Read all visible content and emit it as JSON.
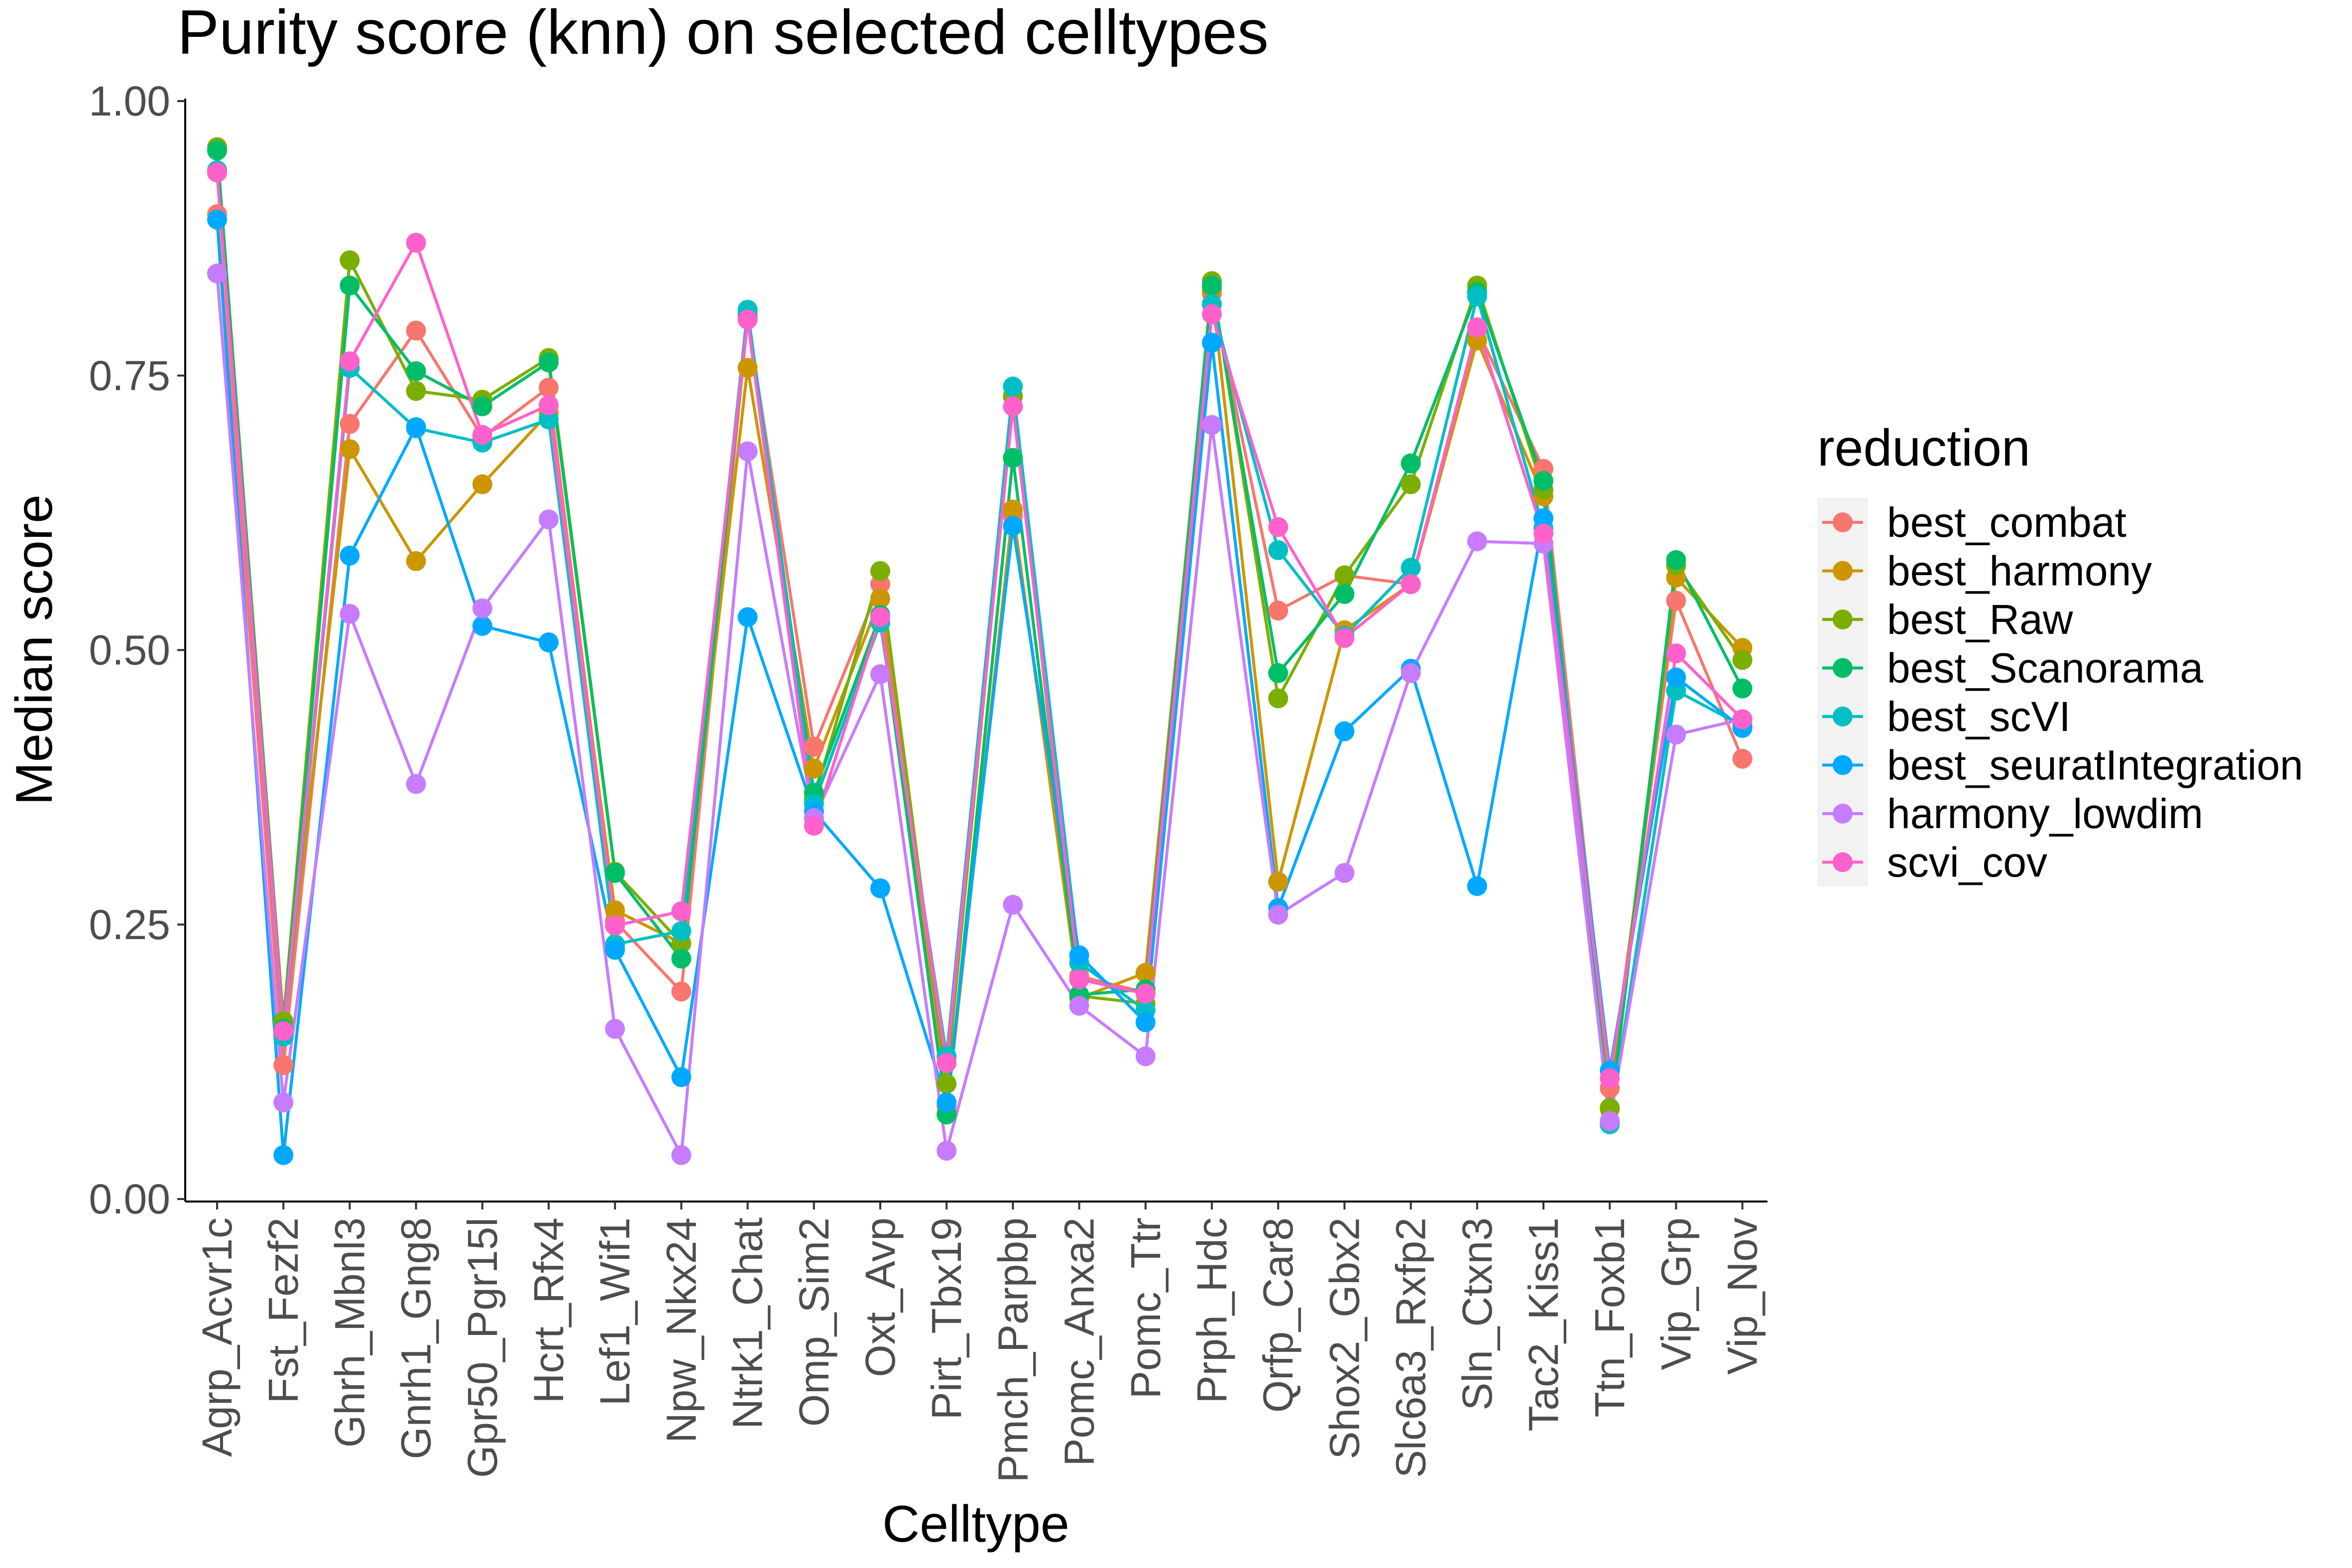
{
  "chart_data": {
    "type": "line",
    "title": "Purity score (knn) on selected celltypes",
    "xlabel": "Celltype",
    "ylabel": "Median score",
    "ylim": [
      0,
      1
    ],
    "yticks": [
      "0.00",
      "0.25",
      "0.50",
      "0.75",
      "1.00"
    ],
    "ytick_values": [
      0,
      0.25,
      0.5,
      0.75,
      1.0
    ],
    "grid": false,
    "legend_title": "reduction",
    "legend_position": "right",
    "categories": [
      "Agrp_Acvr1c",
      "Fst_Fezf2",
      "Ghrh_Mbnl3",
      "Gnrh1_Gng8",
      "Gpr50_Pgr15l",
      "Hcrt_Rfx4",
      "Lef1_Wif1",
      "Npw_Nkx24",
      "Ntrk1_Chat",
      "Omp_Sim2",
      "Oxt_Avp",
      "Pirt_Tbx19",
      "Pmch_Parpbp",
      "Pomc_Anxa2",
      "Pomc_Ttr",
      "Prph_Hdc",
      "Qrfp_Car8",
      "Shox2_Gbx2",
      "Slc6a3_Rxfp2",
      "Sln_Ctxn3",
      "Tac2_Kiss1",
      "Ttn_Foxb1",
      "Vip_Grp",
      "Vip_Nov"
    ],
    "series": [
      {
        "name": "best_combat",
        "color": "#F8766D",
        "values": [
          0.897,
          0.122,
          0.706,
          0.791,
          0.694,
          0.739,
          0.253,
          0.189,
          0.802,
          0.412,
          0.56,
          0.085,
          0.622,
          0.203,
          0.188,
          0.825,
          0.536,
          0.568,
          0.56,
          0.792,
          0.665,
          0.101,
          0.545,
          0.401
        ]
      },
      {
        "name": "best_harmony",
        "color": "#CD9600",
        "values": [
          0.935,
          0.152,
          0.683,
          0.581,
          0.651,
          0.716,
          0.263,
          0.233,
          0.757,
          0.392,
          0.547,
          0.078,
          0.628,
          0.183,
          0.206,
          0.829,
          0.289,
          0.518,
          0.56,
          0.782,
          0.64,
          0.082,
          0.566,
          0.502
        ]
      },
      {
        "name": "best_Raw",
        "color": "#7CAE00",
        "values": [
          0.958,
          0.162,
          0.855,
          0.736,
          0.728,
          0.766,
          0.298,
          0.233,
          0.802,
          0.364,
          0.572,
          0.105,
          0.731,
          0.185,
          0.178,
          0.836,
          0.456,
          0.568,
          0.651,
          0.832,
          0.646,
          0.083,
          0.577,
          0.491
        ]
      },
      {
        "name": "best_Scanorama",
        "color": "#00BE67",
        "values": [
          0.955,
          0.155,
          0.832,
          0.754,
          0.722,
          0.762,
          0.297,
          0.219,
          0.806,
          0.37,
          0.532,
          0.077,
          0.675,
          0.186,
          0.191,
          0.832,
          0.479,
          0.551,
          0.67,
          0.826,
          0.654,
          0.069,
          0.582,
          0.465
        ]
      },
      {
        "name": "best_scVI",
        "color": "#00BFC4",
        "values": [
          0.937,
          0.148,
          0.757,
          0.702,
          0.689,
          0.71,
          0.232,
          0.244,
          0.81,
          0.36,
          0.525,
          0.13,
          0.74,
          0.215,
          0.172,
          0.815,
          0.591,
          0.513,
          0.575,
          0.822,
          0.611,
          0.068,
          0.463,
          0.431
        ]
      },
      {
        "name": "best_seuratIntegration",
        "color": "#00A9FF",
        "values": [
          0.892,
          0.04,
          0.586,
          0.703,
          0.522,
          0.507,
          0.227,
          0.111,
          0.53,
          0.353,
          0.283,
          0.088,
          0.613,
          0.222,
          0.161,
          0.78,
          0.265,
          0.426,
          0.483,
          0.285,
          0.62,
          0.117,
          0.475,
          0.429
        ]
      },
      {
        "name": "harmony_lowdim",
        "color": "#C77CFF",
        "values": [
          0.843,
          0.088,
          0.533,
          0.378,
          0.538,
          0.619,
          0.155,
          0.04,
          0.681,
          0.347,
          0.478,
          0.044,
          0.268,
          0.176,
          0.13,
          0.705,
          0.259,
          0.297,
          0.479,
          0.599,
          0.597,
          0.071,
          0.423,
          0.437
        ]
      },
      {
        "name": "scvi_cov",
        "color": "#FF61CC",
        "values": [
          0.935,
          0.153,
          0.763,
          0.871,
          0.696,
          0.723,
          0.249,
          0.262,
          0.801,
          0.34,
          0.53,
          0.124,
          0.722,
          0.2,
          0.187,
          0.806,
          0.612,
          0.511,
          0.56,
          0.794,
          0.606,
          0.11,
          0.497,
          0.437
        ]
      }
    ]
  }
}
